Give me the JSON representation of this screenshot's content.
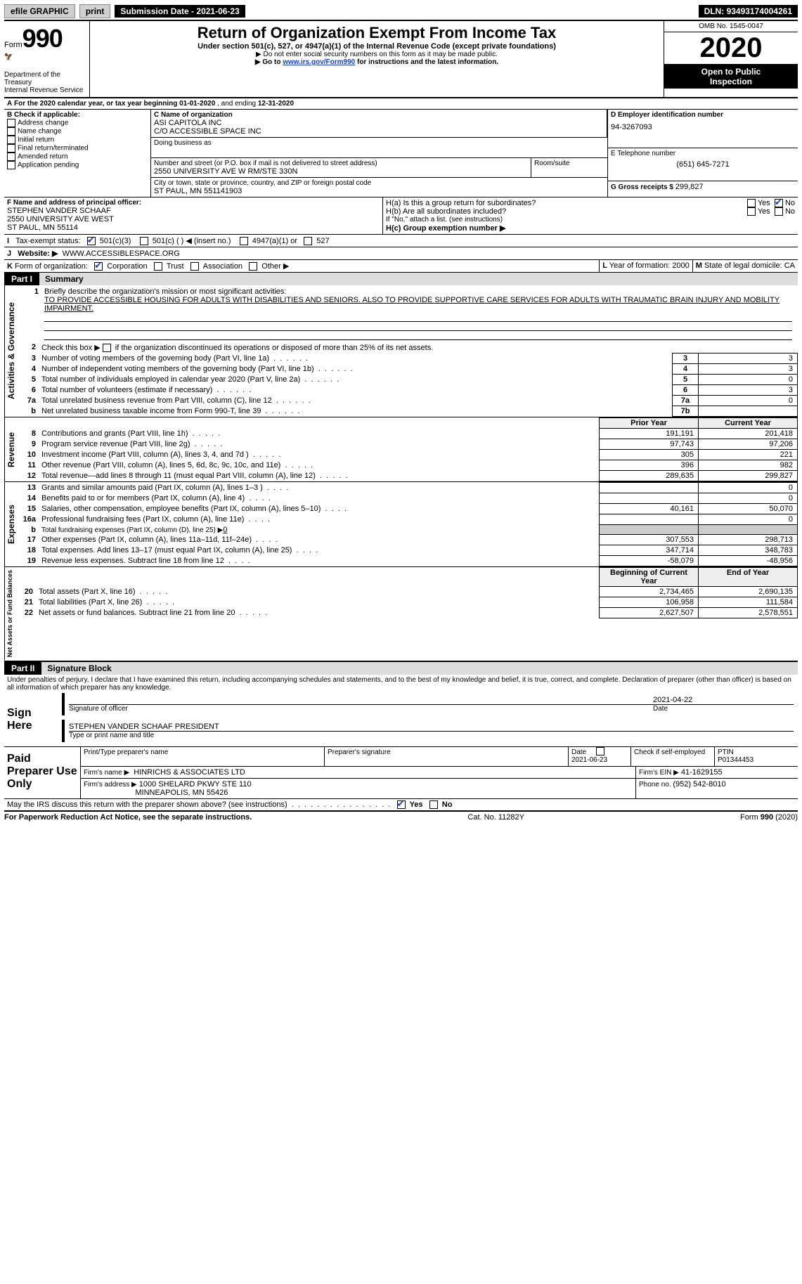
{
  "topbar": {
    "efile_label": "efile GRAPHIC",
    "print_label": "print",
    "submission_prefix": "Submission Date - ",
    "submission_date": "2021-06-23",
    "dln_prefix": "DLN: ",
    "dln": "93493174004261"
  },
  "header": {
    "form_label_prefix": "Form",
    "form_number": "990",
    "dept1": "Department of the Treasury",
    "dept2": "Internal Revenue Service",
    "title": "Return of Organization Exempt From Income Tax",
    "sub": "Under section 501(c), 527, or 4947(a)(1) of the Internal Revenue Code (except private foundations)",
    "note1": "▶ Do not enter social security numbers on this form as it may be made public.",
    "note2_prefix": "▶ Go to ",
    "note2_link": "www.irs.gov/Form990",
    "note2_suffix": " for instructions and the latest information.",
    "omb": "OMB No. 1545-0047",
    "year": "2020",
    "open1": "Open to Public",
    "open2": "Inspection"
  },
  "A": {
    "text_prefix": "A",
    "text": "For the 2020 calendar year, or tax year beginning ",
    "begin": "01-01-2020",
    "mid": " , and ending ",
    "end": "12-31-2020"
  },
  "B": {
    "label": "B Check if applicable:",
    "opts": [
      "Address change",
      "Name change",
      "Initial return",
      "Final return/terminated",
      "Amended return",
      "Application pending"
    ]
  },
  "C": {
    "label": "C Name of organization",
    "name1": "ASI CAPITOLA INC",
    "name2": "C/O ACCESSIBLE SPACE INC",
    "dba_label": "Doing business as",
    "street_label": "Number and street (or P.O. box if mail is not delivered to street address)",
    "room_label": "Room/suite",
    "street": "2550 UNIVERSITY AVE W RM/STE 330N",
    "city_label": "City or town, state or province, country, and ZIP or foreign postal code",
    "city": "ST PAUL, MN  551141903"
  },
  "D": {
    "label": "D Employer identification number",
    "value": "94-3267093"
  },
  "E": {
    "label": "E Telephone number",
    "value": "(651) 645-7271"
  },
  "G": {
    "label": "G Gross receipts $ ",
    "value": "299,827"
  },
  "F": {
    "label": "F  Name and address of principal officer:",
    "name": "STEPHEN VANDER SCHAAF",
    "addr1": "2550 UNIVERSITY AVE WEST",
    "addr2": "ST PAUL, MN  55114"
  },
  "H": {
    "a": "H(a)  Is this a group return for subordinates?",
    "b": "H(b)  Are all subordinates included?",
    "b_note": "If \"No,\" attach a list. (see instructions)",
    "c": "H(c)  Group exemption number ▶",
    "yes": "Yes",
    "no": "No"
  },
  "I": {
    "label": "I",
    "text": "Tax-exempt status:",
    "o1": "501(c)(3)",
    "o2": "501(c) (   ) ◀ (insert no.)",
    "o3": "4947(a)(1) or",
    "o4": "527"
  },
  "J": {
    "label": "J",
    "text": "Website: ▶",
    "value": "WWW.ACCESSIBLESPACE.ORG"
  },
  "K": {
    "label": "K",
    "text": "Form of organization:",
    "o1": "Corporation",
    "o2": "Trust",
    "o3": "Association",
    "o4": "Other ▶"
  },
  "L": {
    "label": "L",
    "text": " Year of formation: ",
    "value": "2000"
  },
  "M": {
    "label": "M",
    "text": " State of legal domicile: ",
    "value": "CA"
  },
  "part1": {
    "label": "Part I",
    "title": "Summary"
  },
  "p1_1": {
    "num": "1",
    "text": "Briefly describe the organization's mission or most significant activities:",
    "desc": "TO PROVIDE ACCESSIBLE HOUSING FOR ADULTS WITH DISABILITIES AND SENIORS. ALSO TO PROVIDE SUPPORTIVE CARE SERVICES FOR ADULTS WITH TRAUMATIC BRAIN INJURY AND MOBILITY IMPAIRMENT."
  },
  "sideLabels": {
    "gov": "Activities & Governance",
    "rev": "Revenue",
    "exp": "Expenses",
    "net": "Net Assets or Fund Balances"
  },
  "govLines": [
    {
      "n": "2",
      "t": "Check this box ▶       if the organization discontinued its operations or disposed of more than 25% of its net assets."
    },
    {
      "n": "3",
      "t": "Number of voting members of the governing body (Part VI, line 1a)",
      "b": "3",
      "v": "3"
    },
    {
      "n": "4",
      "t": "Number of independent voting members of the governing body (Part VI, line 1b)",
      "b": "4",
      "v": "3"
    },
    {
      "n": "5",
      "t": "Total number of individuals employed in calendar year 2020 (Part V, line 2a)",
      "b": "5",
      "v": "0"
    },
    {
      "n": "6",
      "t": "Total number of volunteers (estimate if necessary)",
      "b": "6",
      "v": "3"
    },
    {
      "n": "7a",
      "t": "Total unrelated business revenue from Part VIII, column (C), line 12",
      "b": "7a",
      "v": "0"
    },
    {
      "n": "b",
      "t": "Net unrelated business taxable income from Form 990-T, line 39",
      "b": "7b",
      "v": ""
    }
  ],
  "col_prior": "Prior Year",
  "col_current": "Current Year",
  "revLines": [
    {
      "n": "8",
      "t": "Contributions and grants (Part VIII, line 1h)",
      "p": "191,191",
      "c": "201,418"
    },
    {
      "n": "9",
      "t": "Program service revenue (Part VIII, line 2g)",
      "p": "97,743",
      "c": "97,206"
    },
    {
      "n": "10",
      "t": "Investment income (Part VIII, column (A), lines 3, 4, and 7d )",
      "p": "305",
      "c": "221"
    },
    {
      "n": "11",
      "t": "Other revenue (Part VIII, column (A), lines 5, 6d, 8c, 9c, 10c, and 11e)",
      "p": "396",
      "c": "982"
    },
    {
      "n": "12",
      "t": "Total revenue—add lines 8 through 11 (must equal Part VIII, column (A), line 12)",
      "p": "289,635",
      "c": "299,827"
    }
  ],
  "expLines": [
    {
      "n": "13",
      "t": "Grants and similar amounts paid (Part IX, column (A), lines 1–3 )",
      "p": "",
      "c": "0"
    },
    {
      "n": "14",
      "t": "Benefits paid to or for members (Part IX, column (A), line 4)",
      "p": "",
      "c": "0"
    },
    {
      "n": "15",
      "t": "Salaries, other compensation, employee benefits (Part IX, column (A), lines 5–10)",
      "p": "40,161",
      "c": "50,070"
    },
    {
      "n": "16a",
      "t": "Professional fundraising fees (Part IX, column (A), line 11e)",
      "p": "",
      "c": "0"
    },
    {
      "n": "b",
      "t": "Total fundraising expenses (Part IX, column (D), line 25) ▶",
      "fund": "0",
      "shade": true
    },
    {
      "n": "17",
      "t": "Other expenses (Part IX, column (A), lines 11a–11d, 11f–24e)",
      "p": "307,553",
      "c": "298,713"
    },
    {
      "n": "18",
      "t": "Total expenses. Add lines 13–17 (must equal Part IX, column (A), line 25)",
      "p": "347,714",
      "c": "348,783"
    },
    {
      "n": "19",
      "t": "Revenue less expenses. Subtract line 18 from line 12",
      "p": "-58,079",
      "c": "-48,956"
    }
  ],
  "col_begin": "Beginning of Current Year",
  "col_end": "End of Year",
  "netLines": [
    {
      "n": "20",
      "t": "Total assets (Part X, line 16)",
      "p": "2,734,465",
      "c": "2,690,135"
    },
    {
      "n": "21",
      "t": "Total liabilities (Part X, line 26)",
      "p": "106,958",
      "c": "111,584"
    },
    {
      "n": "22",
      "t": "Net assets or fund balances. Subtract line 21 from line 20",
      "p": "2,627,507",
      "c": "2,578,551"
    }
  ],
  "part2": {
    "label": "Part II",
    "title": "Signature Block"
  },
  "perjury": "Under penalties of perjury, I declare that I have examined this return, including accompanying schedules and statements, and to the best of my knowledge and belief, it is true, correct, and complete. Declaration of preparer (other than officer) is based on all information of which preparer has any knowledge.",
  "sign": {
    "label": "Sign Here",
    "sig_label": "Signature of officer",
    "date_label": "Date",
    "date": "2021-04-22",
    "name": "STEPHEN VANDER SCHAAF  PRESIDENT",
    "name_label": "Type or print name and title"
  },
  "paid": {
    "label": "Paid Preparer Use Only",
    "h1": "Print/Type preparer's name",
    "h2": "Preparer's signature",
    "h3": "Date",
    "h3v": "2021-06-23",
    "h4": "Check        if self-employed",
    "h5": "PTIN",
    "h5v": "P01344453",
    "firm_label": "Firm's name   ▶",
    "firm": "HINRICHS & ASSOCIATES LTD",
    "ein_label": "Firm's EIN ▶",
    "ein": "41-1629155",
    "addr_label": "Firm's address ▶",
    "addr1": "1000 SHELARD PKWY STE 110",
    "addr2": "MINNEAPOLIS, MN  55426",
    "phone_label": "Phone no. ",
    "phone": "(952) 542-8010"
  },
  "irs_q": "May the IRS discuss this return with the preparer shown above? (see instructions)",
  "footer": {
    "l": "For Paperwork Reduction Act Notice, see the separate instructions.",
    "m": "Cat. No. 11282Y",
    "r": "Form 990 (2020)"
  }
}
